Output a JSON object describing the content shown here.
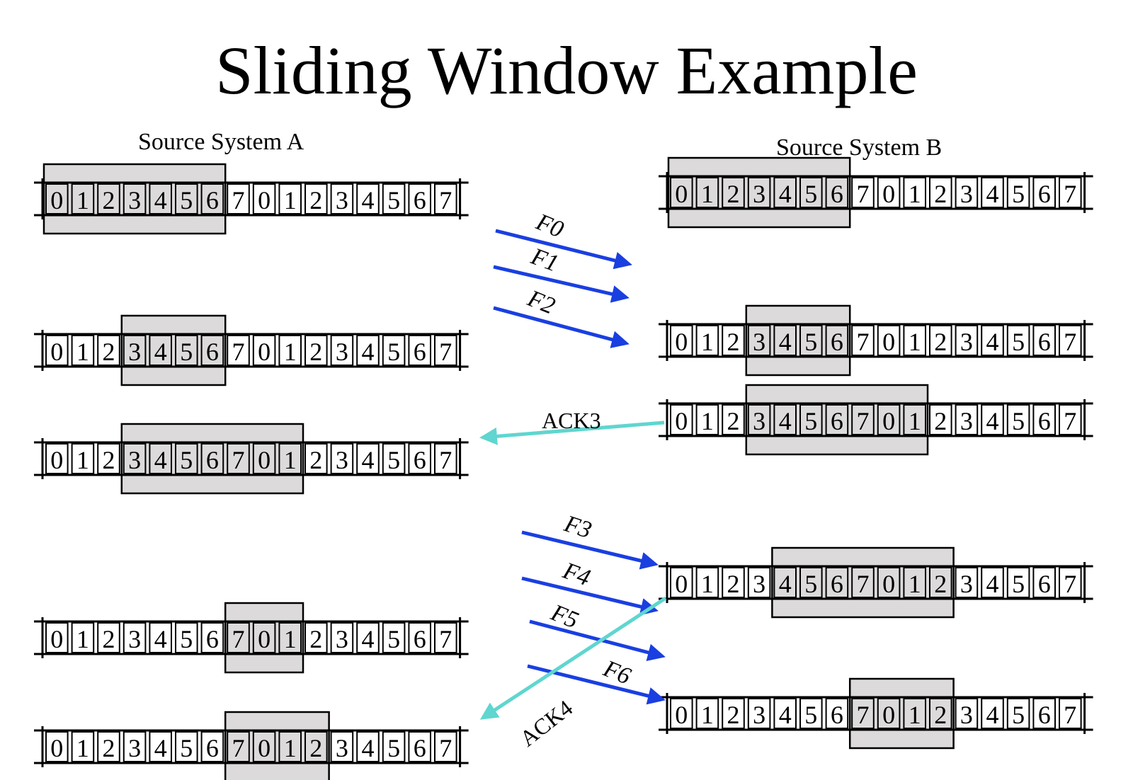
{
  "title": "Sliding Window Example",
  "source_a_label": "Source System A",
  "source_b_label": "Source System B",
  "sequence": [
    "0",
    "1",
    "2",
    "3",
    "4",
    "5",
    "6",
    "7",
    "0",
    "1",
    "2",
    "3",
    "4",
    "5",
    "6",
    "7"
  ],
  "colors": {
    "window_fill": "#dcdadb",
    "frame_arrow": "#1a3fe0",
    "ack_arrow": "#5fd6cf",
    "stroke": "#000000"
  },
  "windows": [
    {
      "id": "a-state-1",
      "side": "A",
      "start": 0,
      "size": 7
    },
    {
      "id": "a-state-2",
      "side": "A",
      "start": 3,
      "size": 4
    },
    {
      "id": "a-state-3",
      "side": "A",
      "start": 3,
      "size": 7
    },
    {
      "id": "a-state-4",
      "side": "A",
      "start": 7,
      "size": 3
    },
    {
      "id": "a-state-5",
      "side": "A",
      "start": 7,
      "size": 4
    },
    {
      "id": "b-state-1",
      "side": "B",
      "start": 0,
      "size": 7
    },
    {
      "id": "b-state-2",
      "side": "B",
      "start": 3,
      "size": 4
    },
    {
      "id": "b-state-3",
      "side": "B",
      "start": 3,
      "size": 7
    },
    {
      "id": "b-state-4",
      "side": "B",
      "start": 4,
      "size": 7
    },
    {
      "id": "b-state-5",
      "side": "B",
      "start": 7,
      "size": 4
    }
  ],
  "frame_arrows": [
    {
      "label": "F0"
    },
    {
      "label": "F1"
    },
    {
      "label": "F2"
    },
    {
      "label": "F3"
    },
    {
      "label": "F4"
    },
    {
      "label": "F5"
    },
    {
      "label": "F6"
    }
  ],
  "ack_arrows": [
    {
      "label": "ACK3"
    },
    {
      "label": "ACK4"
    }
  ]
}
